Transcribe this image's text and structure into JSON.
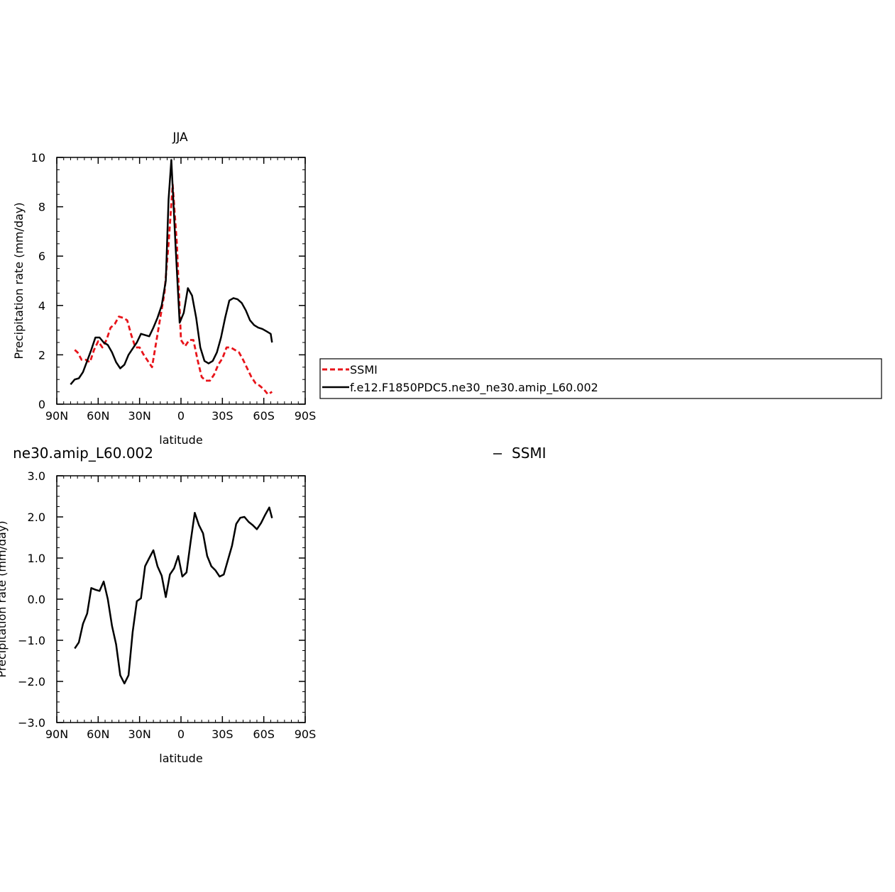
{
  "chart_data": [
    {
      "type": "line",
      "title": "JJA",
      "xlabel": "latitude",
      "ylabel": "Precipitation rate (mm/day)",
      "xlim": [
        90,
        -90
      ],
      "ylim": [
        0,
        10
      ],
      "xticks": [
        90,
        60,
        30,
        0,
        -30,
        -60,
        -90
      ],
      "xtick_labels": [
        "90N",
        "60N",
        "30N",
        "0",
        "30S",
        "60S",
        "90S"
      ],
      "yticks": [
        0,
        2,
        4,
        6,
        8,
        10
      ],
      "ytick_labels": [
        "0",
        "2",
        "4",
        "6",
        "8",
        "10"
      ],
      "legend_position": "right",
      "series": [
        {
          "name": "SSMI",
          "color": "#e8141a",
          "style": "dashed",
          "x": [
            77,
            75,
            72,
            69,
            66,
            63,
            60,
            57,
            54,
            51,
            48,
            45,
            42,
            39,
            36,
            33,
            30,
            27,
            24,
            21,
            18,
            15,
            12,
            9,
            6,
            3,
            0,
            -3,
            -6,
            -9,
            -12,
            -15,
            -18,
            -21,
            -24,
            -27,
            -30,
            -33,
            -36,
            -39,
            -42,
            -45,
            -48,
            -51,
            -54,
            -57,
            -60,
            -63,
            -66
          ],
          "values": [
            2.2,
            2.1,
            1.8,
            1.8,
            1.7,
            2.2,
            2.55,
            2.3,
            2.6,
            3.1,
            3.25,
            3.55,
            3.5,
            3.4,
            2.8,
            2.3,
            2.3,
            2.0,
            1.75,
            1.5,
            2.5,
            3.5,
            4.5,
            6.5,
            8.9,
            6.5,
            2.6,
            2.35,
            2.6,
            2.6,
            1.8,
            1.1,
            0.95,
            0.95,
            1.2,
            1.6,
            1.85,
            2.3,
            2.3,
            2.2,
            2.1,
            1.8,
            1.45,
            1.1,
            0.85,
            0.75,
            0.6,
            0.4,
            0.5
          ]
        },
        {
          "name": "f.e12.F1850PDC5.ne30_ne30.amip_L60.002",
          "color": "#000000",
          "style": "solid",
          "x": [
            80,
            77,
            74,
            71,
            68,
            65,
            62,
            59,
            56,
            53,
            50,
            47,
            44,
            41,
            38,
            35,
            32,
            29,
            26,
            23,
            20,
            17,
            14,
            11,
            9,
            7,
            4,
            1,
            -2,
            -5,
            -8,
            -11,
            -14,
            -17,
            -20,
            -23,
            -26,
            -29,
            -32,
            -35,
            -38,
            -41,
            -44,
            -47,
            -50,
            -53,
            -56,
            -59,
            -62,
            -65,
            -66
          ],
          "values": [
            0.8,
            1.0,
            1.05,
            1.3,
            1.75,
            2.2,
            2.7,
            2.7,
            2.5,
            2.4,
            2.1,
            1.7,
            1.45,
            1.6,
            2.0,
            2.25,
            2.5,
            2.85,
            2.8,
            2.75,
            3.1,
            3.5,
            4.0,
            5.0,
            8.3,
            9.9,
            6.5,
            3.3,
            3.7,
            4.7,
            4.4,
            3.5,
            2.3,
            1.75,
            1.65,
            1.75,
            2.1,
            2.7,
            3.5,
            4.2,
            4.3,
            4.25,
            4.1,
            3.8,
            3.4,
            3.2,
            3.1,
            3.05,
            2.95,
            2.85,
            2.5
          ]
        }
      ]
    },
    {
      "type": "line",
      "title_left": "ne30.amip_L60.002",
      "title_right": "SSMI",
      "xlabel": "latitude",
      "ylabel": "Precipitation rate (mm/day)",
      "xlim": [
        90,
        -90
      ],
      "ylim": [
        -3,
        3
      ],
      "xticks": [
        90,
        60,
        30,
        0,
        -30,
        -60,
        -90
      ],
      "xtick_labels": [
        "90N",
        "60N",
        "30N",
        "0",
        "30S",
        "60S",
        "90S"
      ],
      "yticks": [
        -3,
        -2,
        -1,
        0,
        1,
        2,
        3
      ],
      "ytick_labels": [
        "−3.0",
        "−2.0",
        "−1.0",
        "0.0",
        "1.0",
        "2.0",
        "3.0"
      ],
      "series": [
        {
          "color": "#000000",
          "style": "solid",
          "x": [
            77,
            74,
            71,
            68,
            65,
            62,
            59,
            56,
            53,
            50,
            47,
            44,
            41,
            38,
            35,
            32,
            29,
            26,
            23,
            20,
            17,
            14,
            11,
            8,
            5,
            2,
            -1,
            -4,
            -7,
            -10,
            -13,
            -16,
            -19,
            -22,
            -25,
            -28,
            -31,
            -34,
            -37,
            -40,
            -43,
            -46,
            -49,
            -52,
            -55,
            -58,
            -61,
            -64,
            -66
          ],
          "values": [
            -1.2,
            -1.05,
            -0.6,
            -0.35,
            0.27,
            0.23,
            0.2,
            0.43,
            0.0,
            -0.65,
            -1.1,
            -1.85,
            -2.05,
            -1.85,
            -0.8,
            -0.05,
            0.02,
            0.8,
            1.0,
            1.19,
            0.8,
            0.57,
            0.05,
            0.6,
            0.75,
            1.05,
            0.55,
            0.65,
            1.4,
            2.1,
            1.8,
            1.6,
            1.05,
            0.8,
            0.7,
            0.55,
            0.6,
            0.95,
            1.3,
            1.83,
            1.98,
            2.0,
            1.88,
            1.8,
            1.7,
            1.85,
            2.05,
            2.23,
            1.97
          ]
        }
      ]
    }
  ]
}
